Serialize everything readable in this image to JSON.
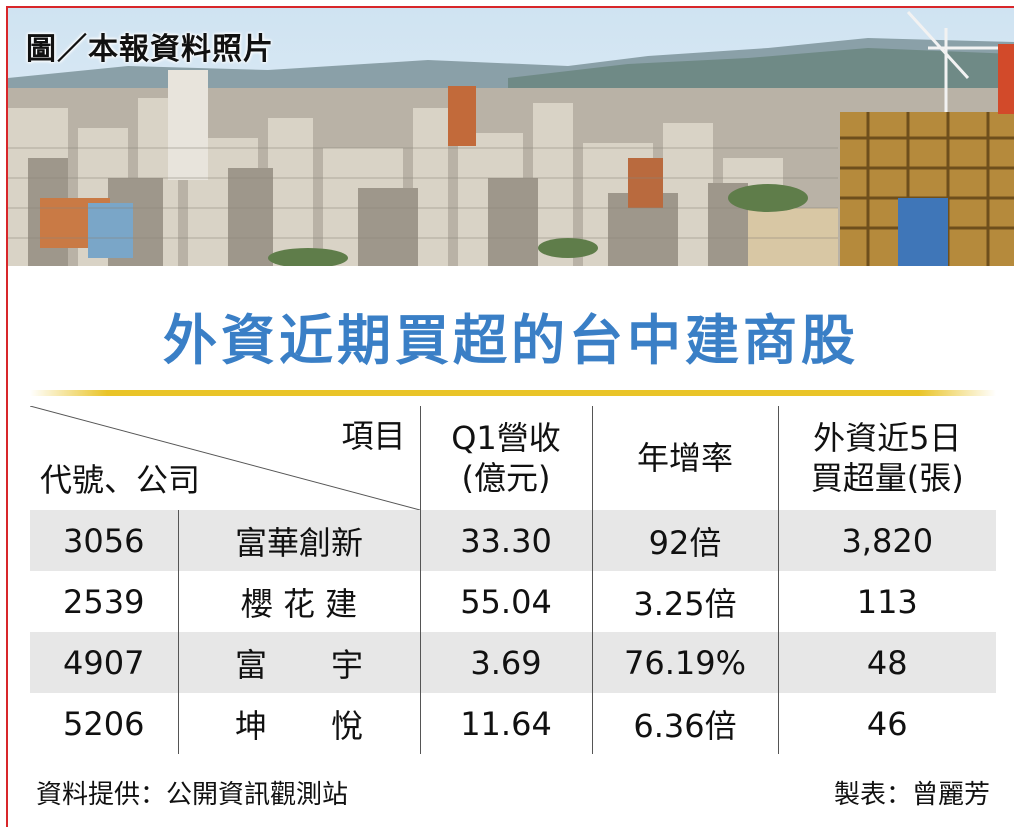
{
  "photo": {
    "caption": "圖／本報資料照片"
  },
  "title": "外資近期買超的台中建商股",
  "table": {
    "header": {
      "item": "項目",
      "code_company": "代號、公司",
      "q1_revenue_line1": "Q1營收",
      "q1_revenue_line2": "(億元)",
      "yoy": "年增率",
      "foreign_line1": "外資近5日",
      "foreign_line2": "買超量(張)"
    },
    "rows": [
      {
        "code": "3056",
        "company": "富華創新",
        "q1": "33.30",
        "yoy": "92倍",
        "foreign": "3,820"
      },
      {
        "code": "2539",
        "company": "櫻 花 建",
        "q1": "55.04",
        "yoy": "3.25倍",
        "foreign": "113"
      },
      {
        "code": "4907",
        "company": "富　　宇",
        "q1": "3.69",
        "yoy": "76.19%",
        "foreign": "48"
      },
      {
        "code": "5206",
        "company": "坤　　悅",
        "q1": "11.64",
        "yoy": "6.36倍",
        "foreign": "46"
      }
    ]
  },
  "footer": {
    "source": "資料提供：公開資訊觀測站",
    "maker": "製表：曾麗芳"
  }
}
